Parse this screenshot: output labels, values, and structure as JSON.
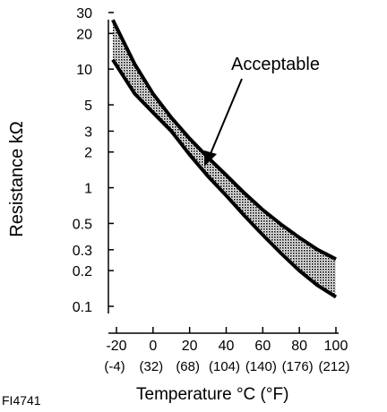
{
  "chart_data": {
    "type": "area",
    "ylabel": "Resistance kΩ",
    "xlabel": "Temperature °C (°F)",
    "figure_id": "FI4741",
    "annotation": "Acceptable",
    "y_scale": "log",
    "ylim": [
      0.1,
      30
    ],
    "xlim": [
      -20,
      100
    ],
    "y_ticks": [
      0.1,
      0.2,
      0.3,
      0.5,
      1,
      2,
      3,
      5,
      10,
      20,
      30
    ],
    "y_tick_labels": [
      "0.1",
      "0.2",
      "0.3",
      "0.5",
      "1",
      "2",
      "3",
      "5",
      "10",
      "20",
      "30"
    ],
    "x_ticks": [
      -20,
      0,
      20,
      40,
      60,
      80,
      100
    ],
    "x_tick_labels_c": [
      "-20",
      "0",
      "20",
      "40",
      "60",
      "80",
      "100"
    ],
    "x_tick_labels_f": [
      "(-4)",
      "(32)",
      "(68)",
      "(104)",
      "(140)",
      "(176)",
      "(212)"
    ],
    "series": [
      {
        "name": "Acceptable",
        "x": [
          -22,
          -10,
          0,
          10,
          20,
          30,
          40,
          50,
          60,
          70,
          80,
          90,
          100
        ],
        "upper": [
          26,
          11,
          6.2,
          3.9,
          2.6,
          1.8,
          1.28,
          0.9,
          0.65,
          0.49,
          0.38,
          0.3,
          0.25
        ],
        "lower": [
          12,
          6.2,
          4.3,
          3.0,
          1.9,
          1.25,
          0.86,
          0.58,
          0.4,
          0.28,
          0.2,
          0.15,
          0.12
        ]
      }
    ]
  }
}
